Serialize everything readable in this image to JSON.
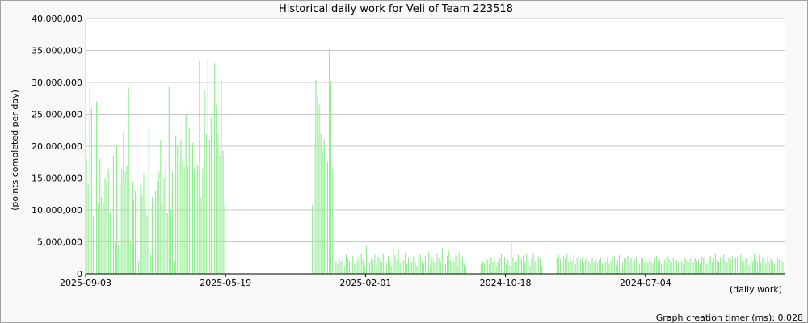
{
  "chart_data": {
    "type": "bar",
    "title": "Historical daily work for Veli of Team 223518",
    "ylabel": "(points completed per day)",
    "xlabel": "(daily work)",
    "ylim": [
      0,
      40000000
    ],
    "yticks": [
      "0",
      "5,000,000",
      "10,000,000",
      "15,000,000",
      "20,000,000",
      "25,000,000",
      "30,000,000",
      "35,000,000",
      "40,000,000"
    ],
    "xticks": [
      "2025-09-03",
      "2025-05-19",
      "2025-02-01",
      "2024-10-18",
      "2024-07-04"
    ],
    "grid": true,
    "bar_color": "#90ee90",
    "series": [
      {
        "values": [
          18000000,
          14000000,
          29300000,
          26000000,
          9000000,
          21000000,
          27000000,
          11000000,
          18000000,
          12000000,
          11000000,
          15000000,
          14500000,
          16500000,
          9500000,
          8500000,
          18500000,
          5000000,
          20000000,
          4500000,
          14000000,
          16500000,
          22300000,
          16000000,
          17000000,
          29200000,
          5000000,
          14500000,
          11500000,
          13000000,
          22300000,
          2000000,
          14000000,
          12500000,
          15500000,
          10000000,
          9000000,
          23200000,
          3000000,
          12000000,
          11000000,
          13000000,
          14500000,
          16000000,
          21000000,
          11000000,
          15000000,
          17500000,
          9500000,
          29300000,
          10000000,
          16000000,
          2000000,
          21600000,
          20000000,
          17200000,
          21000000,
          18000000,
          16800000,
          25000000,
          17000000,
          22800000,
          19800000,
          20500000,
          16500000,
          18000000,
          17000000,
          33400000,
          12000000,
          16500000,
          28800000,
          22000000,
          33700000,
          21000000,
          24500000,
          31200000,
          33000000,
          26500000,
          22000000,
          18500000,
          30500000,
          19300000,
          11000000,
          0,
          0,
          0,
          0,
          0,
          0,
          0,
          0,
          0,
          0,
          0,
          0,
          0,
          0,
          0,
          0,
          0,
          0,
          0,
          0,
          0,
          0,
          0,
          0,
          0,
          0,
          0,
          0,
          0,
          0,
          0,
          0,
          0,
          0,
          0,
          0,
          0,
          0,
          0,
          0,
          0,
          0,
          0,
          0,
          0,
          0,
          0,
          0,
          0,
          0,
          0,
          10800000,
          20500000,
          30400000,
          28000000,
          26500000,
          22000000,
          19500000,
          21000000,
          19000000,
          17500000,
          35200000,
          30000000,
          16500000,
          0,
          2000000,
          1500000,
          2200000,
          1800000,
          2500000,
          1200000,
          3000000,
          2600000,
          2100000,
          1800000,
          2800000,
          1500000,
          2000000,
          2400000,
          1700000,
          3200000,
          2300000,
          1100000,
          4400000,
          2500000,
          1800000,
          2600000,
          2100000,
          3000000,
          1400000,
          2700000,
          2200000,
          1900000,
          3100000,
          2400000,
          1600000,
          2800000,
          2000000,
          1300000,
          4000000,
          2900000,
          2200000,
          3800000,
          1700000,
          2500000,
          2100000,
          3300000,
          1500000,
          2600000,
          2300000,
          1800000,
          2700000,
          1900000,
          1200000,
          2400000,
          3000000,
          2000000,
          1600000,
          2800000,
          2200000,
          3500000,
          1400000,
          2600000,
          2000000,
          1700000,
          3200000,
          2500000,
          1900000,
          4000000,
          2300000,
          1500000,
          2800000,
          3600000,
          2100000,
          2600000,
          1800000,
          2900000,
          1300000,
          3400000,
          2200000,
          2700000,
          1600000,
          1000000,
          0,
          0,
          0,
          0,
          0,
          0,
          0,
          0,
          1500000,
          2000000,
          1700000,
          2400000,
          2200000,
          1500000,
          2600000,
          1900000,
          2300000,
          1300000,
          1800000,
          2500000,
          3200000,
          2000000,
          2700000,
          1600000,
          2200000,
          1400000,
          5000000,
          2600000,
          1800000,
          2100000,
          3000000,
          1500000,
          2300000,
          2800000,
          1700000,
          3200000,
          2100000,
          1300000,
          2400000,
          3300000,
          2000000,
          1600000,
          2700000,
          2300000,
          1200000,
          0,
          0,
          0,
          0,
          0,
          0,
          0,
          0,
          2500000,
          3000000,
          2200000,
          1900000,
          2800000,
          2300000,
          3100000,
          1800000,
          2600000,
          2000000,
          3000000,
          1500000,
          2400000,
          2900000,
          2200000,
          2600000,
          1700000,
          2300000,
          2800000,
          2000000,
          1500000,
          2400000,
          1800000,
          2200000,
          1700000,
          2100000,
          2600000,
          1500000,
          2300000,
          1900000,
          2700000,
          1600000,
          2000000,
          2500000,
          2800000,
          1400000,
          2200000,
          2900000,
          2000000,
          1700000,
          2600000,
          2300000,
          2800000,
          1900000,
          2400000,
          1600000,
          2200000,
          2700000,
          2000000,
          1500000,
          2300000,
          2600000,
          1900000,
          2100000,
          1700000,
          2500000,
          2000000,
          1600000,
          2400000,
          2800000,
          1800000,
          2200000,
          1500000,
          2000000,
          2300000,
          1700000,
          2700000,
          2100000,
          1900000,
          2500000,
          1400000,
          2200000,
          1800000,
          2600000,
          2000000,
          1500000,
          2400000,
          2100000,
          1700000,
          2300000,
          2900000,
          1800000,
          2500000,
          2000000,
          2200000,
          1600000,
          2700000,
          2400000,
          2000000,
          1500000,
          2200000,
          2800000,
          1900000,
          2400000,
          3200000,
          2100000,
          1800000,
          2600000,
          2300000,
          3000000,
          2000000,
          1700000,
          2500000,
          2200000,
          2800000,
          1900000,
          2400000,
          2700000,
          1600000,
          3000000,
          2100000,
          1800000,
          2500000,
          2300000,
          1400000,
          2600000,
          2000000,
          3200000,
          2200000,
          1800000,
          2900000,
          1700000,
          2400000,
          2200000,
          1600000,
          2700000,
          1900000,
          2300000,
          2000000,
          1500000,
          1900000,
          2500000,
          2200000,
          2100000,
          1800000,
          300000
        ]
      }
    ]
  },
  "footer": {
    "timer_label": "Graph creation timer (ms): 0.028"
  }
}
